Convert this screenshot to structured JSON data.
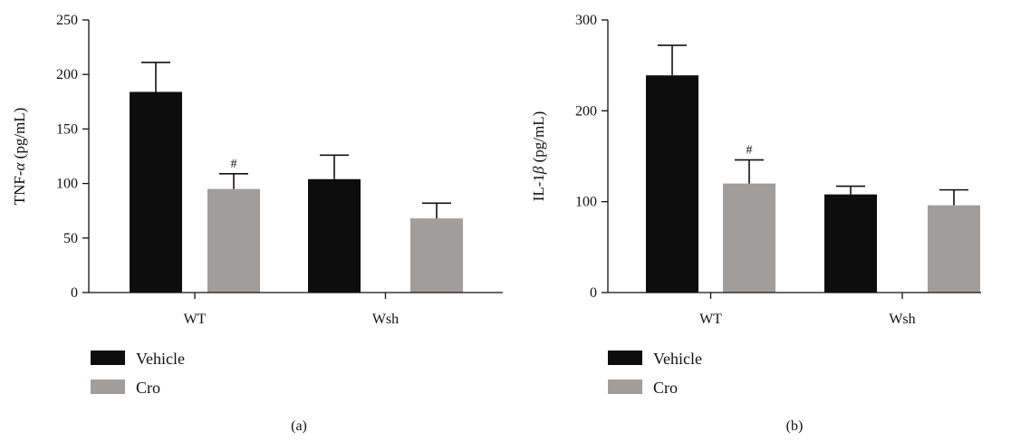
{
  "series_colors": {
    "Vehicle": "#0d0d0d",
    "Cro": "#a09d9a"
  },
  "legend": [
    {
      "name": "Vehicle",
      "color": "#0d0d0d"
    },
    {
      "name": "Cro",
      "color": "#a09d9a"
    }
  ],
  "chart_data": [
    {
      "type": "bar",
      "panel_label": "(a)",
      "ylabel": "TNF-α (pg/mL)",
      "ylabel_parts": {
        "prefix": "TNF-",
        "symbol": "α",
        "suffix": " (pg/mL)"
      },
      "ylim": [
        0,
        250
      ],
      "yticks": [
        0,
        50,
        100,
        150,
        200,
        250
      ],
      "categories": [
        "WT",
        "Wsh"
      ],
      "series": [
        {
          "name": "Vehicle",
          "values": [
            184,
            104
          ],
          "errors": [
            27,
            22
          ]
        },
        {
          "name": "Cro",
          "values": [
            95,
            68
          ],
          "errors": [
            14,
            14
          ]
        }
      ],
      "annotations": [
        {
          "category": "WT",
          "series": "Cro",
          "text": "#"
        }
      ],
      "legend_position": "bottom-left",
      "grid": false
    },
    {
      "type": "bar",
      "panel_label": "(b)",
      "ylabel": "IL-1β (pg/mL)",
      "ylabel_parts": {
        "prefix": "IL-1",
        "symbol": "β",
        "suffix": " (pg/mL)"
      },
      "ylim": [
        0,
        300
      ],
      "yticks": [
        0,
        100,
        200,
        300
      ],
      "categories": [
        "WT",
        "Wsh"
      ],
      "series": [
        {
          "name": "Vehicle",
          "values": [
            239,
            108
          ],
          "errors": [
            33,
            9
          ]
        },
        {
          "name": "Cro",
          "values": [
            120,
            96
          ],
          "errors": [
            26,
            17
          ]
        }
      ],
      "annotations": [
        {
          "category": "WT",
          "series": "Cro",
          "text": "#"
        }
      ],
      "legend_position": "bottom-left",
      "grid": false
    }
  ]
}
